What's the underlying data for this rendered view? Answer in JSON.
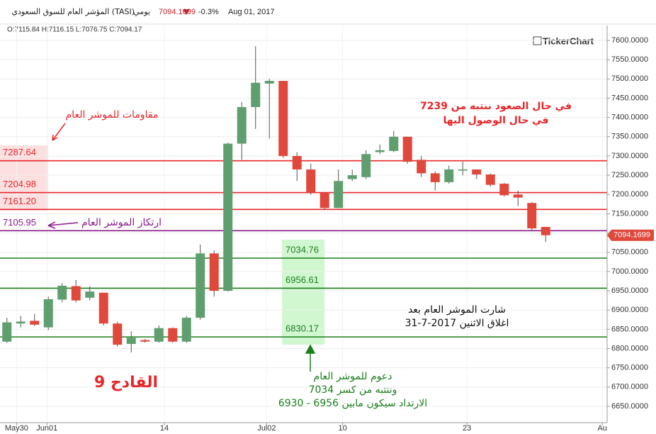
{
  "chart_data": {
    "type": "candlestick",
    "header": {
      "title": "المؤشر العام للسوق السعودي (TASI)",
      "period": "يومي",
      "price": "7094.1699",
      "change": "-0.3%",
      "date": "Aug 01, 2017",
      "ohlc": "O:7115.84  H:7116.15  L:7076.75  C:7094.17",
      "brand": "TickerChart"
    },
    "open": [
      6818,
      6865,
      6872,
      6855,
      6927,
      6962,
      6932,
      6945,
      6865,
      6812,
      6822,
      6818,
      6853,
      6818,
      6880,
      7047,
      6950,
      7332,
      7427,
      7488,
      7495,
      7300,
      7265,
      7205,
      7165,
      7240,
      7245,
      7310,
      7313,
      7350,
      7290,
      7255,
      7232,
      7262,
      7265,
      7252,
      7228,
      7200,
      7178,
      7115.84
    ],
    "high": [
      6880,
      6885,
      6890,
      6935,
      6970,
      6978,
      6962,
      6945,
      6870,
      6845,
      6825,
      6860,
      6855,
      6885,
      7070,
      7055,
      7335,
      7440,
      7585,
      7500,
      7495,
      7310,
      7280,
      7205,
      7265,
      7265,
      7315,
      7330,
      7365,
      7350,
      7300,
      7260,
      7275,
      7285,
      7265,
      7255,
      7230,
      7210,
      7180,
      7116.15
    ],
    "low": [
      6815,
      6855,
      6858,
      6848,
      6920,
      6920,
      6925,
      6860,
      6805,
      6790,
      6815,
      6815,
      6815,
      6815,
      6875,
      6935,
      6948,
      7290,
      7370,
      7345,
      7295,
      7235,
      7200,
      7160,
      7165,
      7235,
      7240,
      7305,
      7310,
      7280,
      7245,
      7210,
      7228,
      7250,
      7240,
      7220,
      7195,
      7170,
      7105,
      7076.75
    ],
    "close": [
      6868,
      6870,
      6862,
      6928,
      6963,
      6925,
      6948,
      6865,
      6810,
      6828,
      6818,
      6853,
      6818,
      6880,
      7047,
      6950,
      7332,
      7427,
      7490,
      7495,
      7300,
      7265,
      7205,
      7165,
      7235,
      7250,
      7305,
      7315,
      7350,
      7285,
      7255,
      7232,
      7265,
      7265,
      7252,
      7225,
      7198,
      7192,
      7112,
      7094.17
    ],
    "up_color": "#5f9e6e",
    "down_color": "#e0483c",
    "xlim": [
      -0.5,
      43.45
    ],
    "xticks": [
      {
        "value": 0.7,
        "label": "May30"
      },
      {
        "value": 2.9,
        "label": "Jun01"
      },
      {
        "value": 11.4,
        "label": "14"
      },
      {
        "value": 18.8,
        "label": "Jul02"
      },
      {
        "value": 24.3,
        "label": "10"
      },
      {
        "value": 33.3,
        "label": "23"
      },
      {
        "value": 43.1,
        "label": "Au"
      }
    ],
    "ylim": [
      6607.6,
      7638.7
    ],
    "yticks": [
      {
        "value": 6650,
        "label": "6650.0000"
      },
      {
        "value": 6700,
        "label": "6700.0000"
      },
      {
        "value": 6750,
        "label": "6750.0000"
      },
      {
        "value": 6800,
        "label": "6800.0000"
      },
      {
        "value": 6850,
        "label": "6850.0000"
      },
      {
        "value": 6900,
        "label": "6900.0000"
      },
      {
        "value": 6950,
        "label": "6950.0000"
      },
      {
        "value": 7000,
        "label": "7000.0000"
      },
      {
        "value": 7050,
        "label": "7050.0000"
      },
      {
        "value": 7100,
        "label": "7100.0000"
      },
      {
        "value": 7150,
        "label": "7150.0000"
      },
      {
        "value": 7200,
        "label": "7200.0000"
      },
      {
        "value": 7250,
        "label": "7250.0000"
      },
      {
        "value": 7300,
        "label": "7300.0000"
      },
      {
        "value": 7350,
        "label": "7350.0000"
      },
      {
        "value": 7400,
        "label": "7400.0000"
      },
      {
        "value": 7450,
        "label": "7450.0000"
      },
      {
        "value": 7500,
        "label": "7500.0000"
      },
      {
        "value": 7550,
        "label": "7550.0000"
      },
      {
        "value": 7600,
        "label": "7600.0000"
      }
    ],
    "grid": true,
    "last_price": 7094.1699,
    "last_price_color": "#e0483c",
    "levels": [
      {
        "value": 7287.64,
        "label": "7287.64",
        "color": "#e8262a"
      },
      {
        "value": 7204.98,
        "label": "7204.98",
        "color": "#e8262a"
      },
      {
        "value": 7161.2,
        "label": "7161.20",
        "color": "#e8262a"
      },
      {
        "value": 7105.95,
        "label": "7105.95",
        "color": "#8a1a8a"
      },
      {
        "value": 7034.76,
        "label": "7034.76",
        "color": "#1b7f1b"
      },
      {
        "value": 6956.61,
        "label": "6956.61",
        "color": "#1b7f1b"
      },
      {
        "value": 6830.17,
        "label": "6830.17",
        "color": "#1b7f1b"
      }
    ],
    "annotations": {
      "resistance": "مقاومات للموشر العام",
      "pivot": "ارتكاز الموشر العام",
      "up_1": "في حال الصعود ننتبه من 7239",
      "up_2": "في حال الوصول اليها",
      "note_1": "شارت الموشر العام بعد",
      "note_2": "اغلاق  الاثنين 2017-7-31",
      "trigger": "القادح 9",
      "support_1": "دعوم للموشر العام",
      "support_2": "وننتبه من كسر 7034",
      "support_3": "الارتداد سيكون مابين 6956 - 6930"
    }
  }
}
